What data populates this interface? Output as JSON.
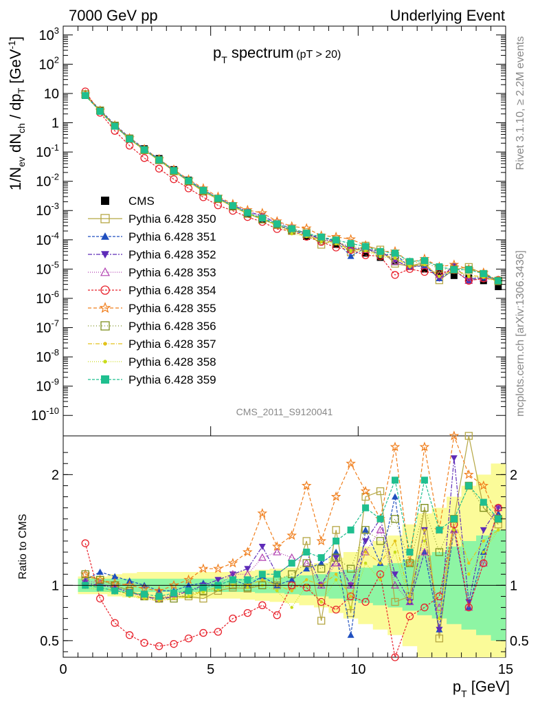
{
  "header": {
    "left": "7000 GeV pp",
    "right": "Underlying Event"
  },
  "plot": {
    "title_main": "p",
    "title_sub": "T",
    "title_word": "spectrum",
    "title_cut": "(pT > 20)",
    "watermark": "CMS_2011_S9120041",
    "side_rivet": "Rivet 3.1.10, ≥ 2.2M events",
    "side_mcplots": "mcplots.cern.ch [arXiv:1306.3436]",
    "ylabel_top": "1/N_ev dN_ch / dp_T [GeV^-1]",
    "ylabel_bottom": "Ratio to CMS",
    "xlabel": "p_T [GeV]"
  },
  "chart_data": {
    "type": "line",
    "x": [
      0.75,
      1.25,
      1.75,
      2.25,
      2.75,
      3.25,
      3.75,
      4.25,
      4.75,
      5.25,
      5.75,
      6.25,
      6.75,
      7.25,
      7.75,
      8.25,
      8.75,
      9.25,
      9.75,
      10.25,
      10.75,
      11.25,
      11.75,
      12.25,
      12.75,
      13.25,
      13.75,
      14.25,
      14.75
    ],
    "xlim": [
      0,
      15
    ],
    "x_ticks": [
      0,
      5,
      10,
      15
    ],
    "top": {
      "yscale": "log",
      "ylim": [
        2e-11,
        2000
      ],
      "y_tick_labels": [
        "10^-10",
        "10^-9",
        "10^-8",
        "10^-7",
        "10^-6",
        "10^-5",
        "10^-4",
        "10^-3",
        "10^-2",
        "10^-1",
        "1",
        "10",
        "10^2",
        "10^3"
      ]
    },
    "bottom": {
      "ylim": [
        0.35,
        2.35
      ],
      "y_ticks": [
        0.5,
        1,
        2
      ]
    },
    "cms": [
      8.5,
      2.5,
      0.8,
      0.3,
      0.13,
      0.06,
      0.025,
      0.011,
      0.005,
      0.0026,
      0.0014,
      0.0008,
      0.0005,
      0.00032,
      0.0002,
      0.00013,
      0.0001,
      7e-05,
      5e-05,
      3.5e-05,
      2.5e-05,
      1.8e-05,
      1.4e-05,
      1e-05,
      8e-06,
      6e-06,
      5e-06,
      4e-06,
      2.5e-06
    ],
    "legend": [
      {
        "name": "CMS",
        "color": "#000000",
        "marker": "square-filled"
      },
      {
        "name": "Pythia 6.428 350",
        "color": "#b5a642",
        "marker": "square-open"
      },
      {
        "name": "Pythia 6.428 351",
        "color": "#1f4fbf",
        "marker": "triangle-up"
      },
      {
        "name": "Pythia 6.428 352",
        "color": "#5e2bb8",
        "marker": "triangle-down"
      },
      {
        "name": "Pythia 6.428 353",
        "color": "#b03fb0",
        "marker": "triangle-open"
      },
      {
        "name": "Pythia 6.428 354",
        "color": "#e8202a",
        "marker": "circle-open"
      },
      {
        "name": "Pythia 6.428 355",
        "color": "#f07d1a",
        "marker": "star"
      },
      {
        "name": "Pythia 6.428 356",
        "color": "#7e8f1e",
        "marker": "square-open"
      },
      {
        "name": "Pythia 6.428 357",
        "color": "#e3c21a",
        "marker": "dot"
      },
      {
        "name": "Pythia 6.428 358",
        "color": "#c9dc1a",
        "marker": "dot"
      },
      {
        "name": "Pythia 6.428 359",
        "color": "#1fbf8f",
        "marker": "square-filled"
      }
    ],
    "ratios": [
      [
        1.08,
        1.05,
        1.0,
        0.95,
        0.9,
        0.88,
        0.9,
        0.9,
        0.88,
        0.95,
        0.98,
        0.97,
        1.0,
        1.0,
        1.0,
        1.4,
        0.68,
        1.5,
        0.75,
        1.8,
        1.85,
        0.85,
        0.9,
        1.7,
        0.52,
        1.6,
        2.35,
        1.7,
        1.55
      ],
      [
        1.05,
        1.12,
        1.08,
        1.04,
        1.0,
        0.95,
        0.95,
        1.0,
        1.02,
        1.0,
        1.05,
        1.0,
        1.08,
        1.0,
        1.05,
        1.15,
        1.2,
        1.3,
        0.55,
        1.5,
        1.2,
        1.8,
        0.85,
        1.3,
        0.6,
        1.5,
        0.8,
        1.3,
        1.65
      ],
      [
        1.02,
        1.0,
        0.98,
        0.94,
        0.9,
        0.87,
        0.9,
        0.95,
        1.0,
        1.05,
        1.1,
        1.15,
        1.35,
        1.1,
        1.2,
        1.3,
        1.0,
        1.25,
        1.0,
        1.4,
        1.6,
        1.1,
        0.85,
        1.5,
        0.6,
        2.15,
        0.85,
        1.5,
        1.7
      ],
      [
        1.04,
        1.02,
        0.98,
        0.93,
        0.9,
        0.88,
        0.92,
        0.95,
        0.98,
        1.0,
        1.1,
        1.1,
        1.25,
        1.3,
        1.25,
        1.2,
        1.0,
        1.2,
        1.0,
        1.3,
        1.5,
        1.0,
        0.85,
        1.3,
        0.8,
        1.5,
        0.8,
        1.2,
        1.7
      ],
      [
        1.38,
        0.88,
        0.66,
        0.55,
        0.48,
        0.45,
        0.47,
        0.52,
        0.57,
        0.58,
        0.7,
        0.75,
        0.82,
        0.73,
        1.0,
        0.98,
        0.85,
        0.78,
        0.9,
        0.85,
        1.1,
        0.35,
        0.72,
        0.8,
        0.9,
        1.55,
        0.8,
        1.2,
        1.7
      ],
      [
        1.1,
        1.05,
        1.02,
        1.0,
        0.97,
        0.95,
        1.0,
        1.05,
        1.15,
        1.15,
        1.2,
        1.3,
        1.65,
        1.35,
        1.45,
        1.9,
        1.4,
        1.8,
        2.1,
        1.85,
        1.6,
        2.25,
        1.2,
        2.25,
        1.5,
        2.35,
        2.0,
        1.9,
        1.6
      ],
      [
        1.1,
        1.05,
        1.0,
        0.95,
        0.9,
        0.88,
        0.88,
        0.92,
        0.95,
        0.98,
        1.0,
        0.98,
        1.0,
        1.05,
        1.1,
        1.2,
        1.15,
        1.25,
        1.15,
        1.5,
        1.4,
        1.6,
        1.2,
        1.7,
        1.3,
        1.6,
        1.9,
        1.7,
        1.6
      ],
      [
        1.0,
        0.98,
        0.95,
        0.92,
        0.88,
        0.86,
        0.88,
        0.9,
        0.95,
        0.98,
        1.0,
        1.0,
        1.05,
        1.0,
        0.95,
        1.05,
        1.0,
        1.1,
        0.9,
        1.3,
        1.2,
        1.4,
        0.9,
        1.5,
        0.7,
        1.6,
        1.2,
        1.4,
        1.5
      ],
      [
        0.98,
        0.96,
        0.93,
        0.9,
        0.88,
        0.87,
        0.88,
        0.9,
        0.94,
        0.96,
        1.0,
        0.98,
        1.0,
        0.95,
        0.8,
        1.0,
        0.85,
        1.05,
        0.8,
        1.2,
        1.05,
        1.3,
        0.85,
        1.4,
        0.7,
        1.5,
        1.1,
        1.3,
        1.5
      ],
      [
        1.0,
        0.98,
        0.95,
        0.93,
        0.92,
        0.9,
        0.93,
        0.95,
        0.98,
        1.0,
        1.05,
        1.05,
        1.1,
        1.1,
        1.2,
        1.3,
        1.25,
        1.4,
        1.5,
        1.7,
        1.6,
        1.95,
        1.3,
        1.95,
        1.5,
        1.6,
        1.9,
        1.75,
        1.6
      ]
    ],
    "band_green": [
      0.06,
      0.06,
      0.06,
      0.06,
      0.06,
      0.06,
      0.06,
      0.06,
      0.06,
      0.06,
      0.06,
      0.06,
      0.07,
      0.07,
      0.08,
      0.09,
      0.1,
      0.12,
      0.14,
      0.16,
      0.18,
      0.2,
      0.23,
      0.27,
      0.3,
      0.35,
      0.4,
      0.45,
      0.5
    ],
    "band_yellow": [
      0.08,
      0.08,
      0.1,
      0.11,
      0.12,
      0.12,
      0.12,
      0.12,
      0.12,
      0.12,
      0.12,
      0.13,
      0.14,
      0.15,
      0.16,
      0.18,
      0.2,
      0.25,
      0.3,
      0.35,
      0.4,
      0.45,
      0.55,
      0.65,
      0.7,
      0.8,
      0.9,
      1.0,
      1.1
    ]
  }
}
